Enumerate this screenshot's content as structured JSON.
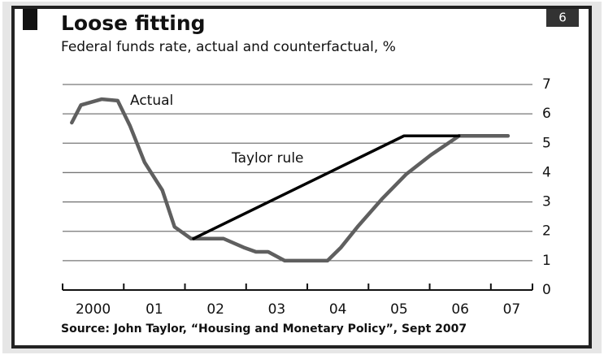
{
  "chart_data": {
    "type": "line",
    "title": "Loose fitting",
    "subtitle": "Federal funds rate, actual and counterfactual, %",
    "source": "Source: John Taylor, “Housing and Monetary Policy”, Sept 2007",
    "badge": "6",
    "xlim": [
      2000,
      2007.68
    ],
    "ylim": [
      0,
      7
    ],
    "yticks": [
      0,
      1,
      2,
      3,
      4,
      5,
      6,
      7
    ],
    "xticks": [
      {
        "value": 2000,
        "label": "2000"
      },
      {
        "value": 2001,
        "label": "01"
      },
      {
        "value": 2002,
        "label": "02"
      },
      {
        "value": 2003,
        "label": "03"
      },
      {
        "value": 2004,
        "label": "04"
      },
      {
        "value": 2005,
        "label": "05"
      },
      {
        "value": 2006,
        "label": "06"
      },
      {
        "value": 2007,
        "label": "07"
      }
    ],
    "grid": true,
    "series": [
      {
        "name": "Actual",
        "color": "#5f5f5f",
        "x": [
          2000.15,
          2000.3,
          2000.64,
          2000.9,
          2001.1,
          2001.34,
          2001.63,
          2001.83,
          2002.1,
          2002.63,
          2002.96,
          2003.16,
          2003.36,
          2003.63,
          2003.9,
          2004.33,
          2004.55,
          2004.82,
          2005.22,
          2005.62,
          2006.02,
          2006.48,
          2007.28
        ],
        "values": [
          5.7,
          6.3,
          6.5,
          6.45,
          5.6,
          4.35,
          3.4,
          2.15,
          1.75,
          1.75,
          1.45,
          1.3,
          1.3,
          1.0,
          1.0,
          1.0,
          1.45,
          2.15,
          3.1,
          3.95,
          4.6,
          5.25,
          5.25
        ]
      },
      {
        "name": "Taylor rule",
        "color": "#000000",
        "x": [
          2002.14,
          2005.58,
          2006.48
        ],
        "values": [
          1.75,
          5.25,
          5.25
        ]
      }
    ]
  }
}
